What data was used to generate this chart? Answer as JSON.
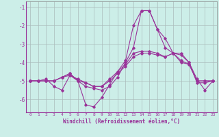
{
  "xlabel": "Windchill (Refroidissement éolien,°C)",
  "ylabel": "",
  "background_color": "#cceee8",
  "grid_color": "#aabbbb",
  "line_color": "#993399",
  "xlim": [
    -0.5,
    23.5
  ],
  "ylim": [
    -6.7,
    -0.7
  ],
  "yticks": [
    -1,
    -2,
    -3,
    -4,
    -5,
    -6
  ],
  "xticks": [
    0,
    1,
    2,
    3,
    4,
    5,
    6,
    7,
    8,
    9,
    10,
    11,
    12,
    13,
    14,
    15,
    16,
    17,
    18,
    19,
    20,
    21,
    22,
    23
  ],
  "series": [
    {
      "x": [
        0,
        1,
        2,
        3,
        4,
        5,
        6,
        7,
        8,
        9,
        10,
        11,
        12,
        13,
        14,
        15,
        16,
        17,
        18,
        19,
        20,
        21,
        22,
        23
      ],
      "y": [
        -5.0,
        -5.0,
        -5.0,
        -5.0,
        -4.8,
        -4.7,
        -4.9,
        -5.1,
        -5.3,
        -5.3,
        -5.0,
        -4.6,
        -4.2,
        -3.7,
        -3.5,
        -3.5,
        -3.6,
        -3.7,
        -3.5,
        -4.0,
        -4.1,
        -5.0,
        -5.0,
        -5.0
      ]
    },
    {
      "x": [
        0,
        1,
        2,
        3,
        4,
        5,
        6,
        7,
        8,
        9,
        10,
        11,
        12,
        13,
        14,
        15,
        16,
        17,
        18,
        19,
        20,
        21,
        22,
        23
      ],
      "y": [
        -5.0,
        -5.0,
        -5.0,
        -5.0,
        -4.8,
        -4.6,
        -5.0,
        -5.3,
        -5.4,
        -5.5,
        -5.3,
        -4.8,
        -4.0,
        -3.2,
        -1.2,
        -1.2,
        -2.2,
        -2.7,
        -3.5,
        -3.6,
        -4.0,
        -5.1,
        -5.1,
        -5.0
      ]
    },
    {
      "x": [
        0,
        1,
        2,
        3,
        4,
        5,
        6,
        7,
        8,
        9,
        10,
        11,
        12,
        13,
        14,
        15,
        16,
        17,
        18,
        19,
        20,
        21,
        22,
        23
      ],
      "y": [
        -5.0,
        -5.0,
        -4.9,
        -5.3,
        -5.5,
        -4.7,
        -5.0,
        -6.3,
        -6.4,
        -5.9,
        -5.2,
        -4.5,
        -3.9,
        -2.0,
        -1.2,
        -1.2,
        -2.2,
        -3.2,
        -3.5,
        -3.5,
        -4.0,
        -4.9,
        -5.5,
        -5.0
      ]
    },
    {
      "x": [
        0,
        1,
        2,
        3,
        4,
        5,
        6,
        7,
        8,
        9,
        10,
        11,
        12,
        13,
        14,
        15,
        16,
        17,
        18,
        19,
        20,
        21,
        22,
        23
      ],
      "y": [
        -5.0,
        -5.0,
        -5.0,
        -5.0,
        -4.8,
        -4.6,
        -5.0,
        -5.1,
        -5.3,
        -5.3,
        -4.9,
        -4.5,
        -4.1,
        -3.5,
        -3.4,
        -3.4,
        -3.5,
        -3.7,
        -3.5,
        -3.9,
        -4.1,
        -5.0,
        -5.0,
        -5.0
      ]
    }
  ]
}
